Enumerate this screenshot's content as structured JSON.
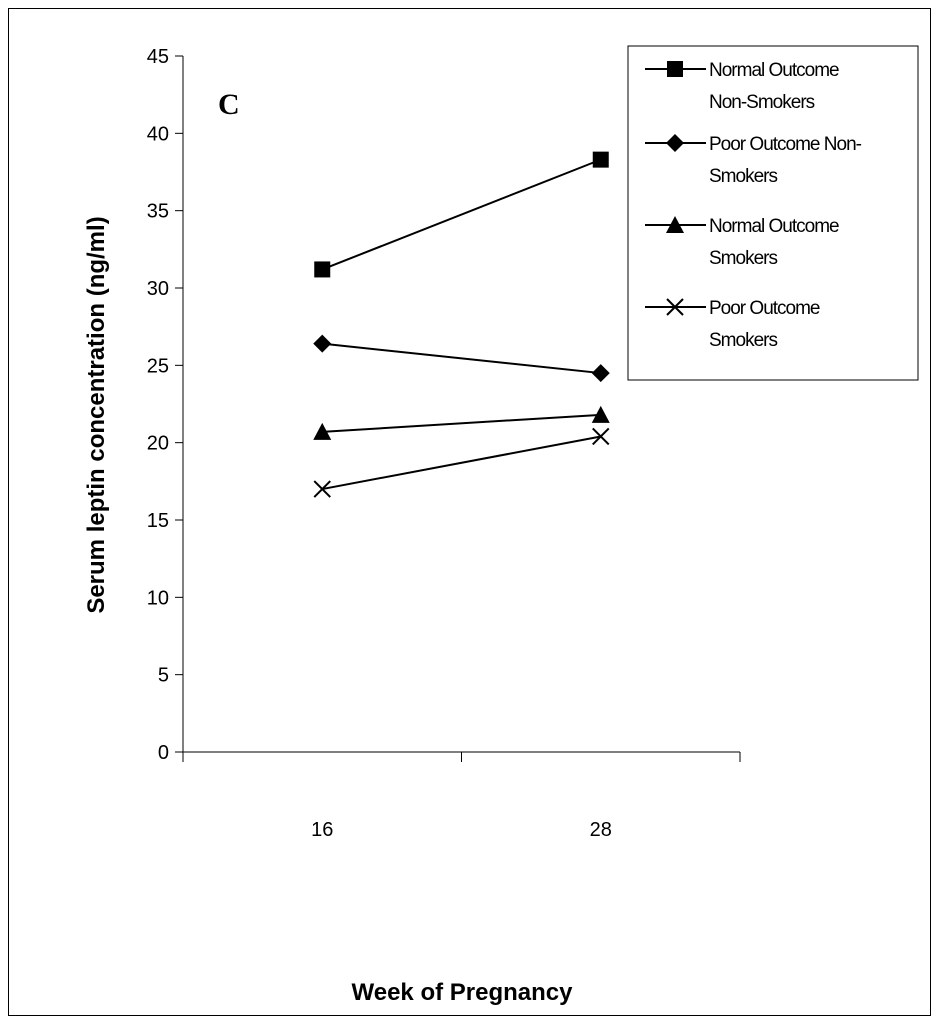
{
  "chart_data": {
    "type": "line",
    "panel_label": "C",
    "xlabel": "Week of Pregnancy",
    "ylabel": "Serum leptin concentration (ng/ml)",
    "categories": [
      "16",
      "28"
    ],
    "ylim": [
      0,
      45
    ],
    "yticks": [
      0,
      5,
      10,
      15,
      20,
      25,
      30,
      35,
      40,
      45
    ],
    "legend_position": "top-right",
    "grid": false,
    "series": [
      {
        "name": "Normal Outcome Non-Smokers",
        "legend_lines": [
          "Normal Outcome",
          "Non-Smokers"
        ],
        "marker": "square",
        "values": [
          31.2,
          38.3
        ]
      },
      {
        "name": "Poor Outcome Non-Smokers",
        "legend_lines": [
          "Poor Outcome Non-",
          "Smokers"
        ],
        "marker": "diamond",
        "values": [
          26.4,
          24.5
        ]
      },
      {
        "name": "Normal Outcome Smokers",
        "legend_lines": [
          "Normal Outcome",
          "Smokers"
        ],
        "marker": "triangle",
        "values": [
          20.7,
          21.8
        ]
      },
      {
        "name": "Poor Outcome Smokers",
        "legend_lines": [
          "Poor Outcome",
          "Smokers"
        ],
        "marker": "x",
        "values": [
          17.0,
          20.4
        ]
      }
    ]
  }
}
